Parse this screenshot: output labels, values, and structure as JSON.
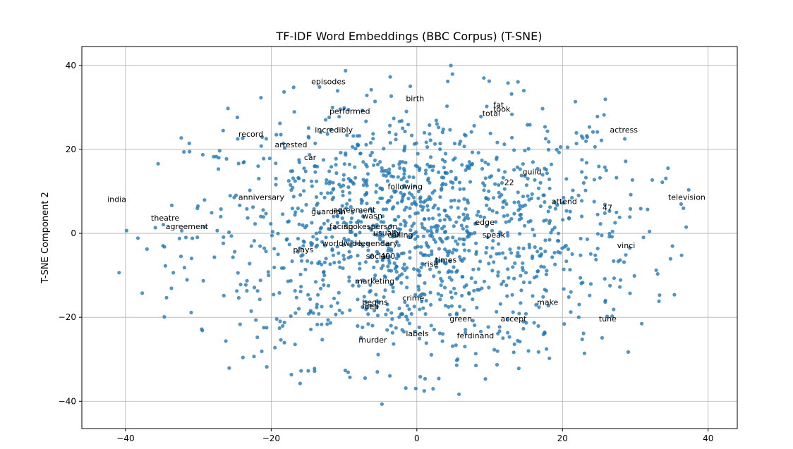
{
  "chart_data": {
    "type": "scatter",
    "title": "TF-IDF Word Embeddings (BBC Corpus) (T-SNE)",
    "xlabel": "",
    "ylabel": "T-SNE Component 2",
    "xlim": [
      -46,
      44
    ],
    "ylim": [
      -46.5,
      44.5
    ],
    "xticks": [
      -40,
      -20,
      0,
      20,
      40
    ],
    "yticks": [
      -40,
      -20,
      0,
      20,
      40
    ],
    "grid": true,
    "point_color": "#1f77b4",
    "approx_point_count": 1400,
    "annotations": [
      {
        "text": "episodes",
        "x": -14.5,
        "y": 35.5
      },
      {
        "text": "birth",
        "x": -1.5,
        "y": 31.5
      },
      {
        "text": "fat",
        "x": 10.5,
        "y": 30.0
      },
      {
        "text": "took",
        "x": 10.5,
        "y": 29.0
      },
      {
        "text": "total",
        "x": 9.0,
        "y": 28.0
      },
      {
        "text": "performed",
        "x": -12.0,
        "y": 28.5
      },
      {
        "text": "incredibly",
        "x": -14.0,
        "y": 24.0
      },
      {
        "text": "record",
        "x": -24.5,
        "y": 23.0
      },
      {
        "text": "actress",
        "x": 26.5,
        "y": 24.0
      },
      {
        "text": "arrested",
        "x": -19.5,
        "y": 20.5
      },
      {
        "text": "car",
        "x": -15.5,
        "y": 17.5
      },
      {
        "text": "guild",
        "x": 14.5,
        "y": 14.0
      },
      {
        "text": "22",
        "x": 12.0,
        "y": 11.5
      },
      {
        "text": "following",
        "x": -4.0,
        "y": 10.5
      },
      {
        "text": "india",
        "x": -42.5,
        "y": 7.5
      },
      {
        "text": "anniversary",
        "x": -24.5,
        "y": 8.0
      },
      {
        "text": "television",
        "x": 34.5,
        "y": 8.0
      },
      {
        "text": "attend",
        "x": 18.5,
        "y": 7.0
      },
      {
        "text": "47",
        "x": 25.5,
        "y": 5.5
      },
      {
        "text": "agreement",
        "x": -11.5,
        "y": 5.0
      },
      {
        "text": "guardian",
        "x": -14.5,
        "y": 4.5
      },
      {
        "text": "wasn",
        "x": -7.5,
        "y": 3.5
      },
      {
        "text": "theatre",
        "x": -36.5,
        "y": 3.0
      },
      {
        "text": "agreement",
        "x": -34.5,
        "y": 1.0
      },
      {
        "text": "edge",
        "x": 8.0,
        "y": 2.0
      },
      {
        "text": "facing",
        "x": -12.0,
        "y": 1.0
      },
      {
        "text": "spokesperson",
        "x": -10.0,
        "y": 1.0
      },
      {
        "text": "usually",
        "x": -6.0,
        "y": -0.5
      },
      {
        "text": "calling",
        "x": -4.0,
        "y": -1.0
      },
      {
        "text": "speak",
        "x": 9.0,
        "y": -1.0
      },
      {
        "text": "worldwide",
        "x": -13.0,
        "y": -3.0
      },
      {
        "text": "legendary",
        "x": -8.0,
        "y": -3.0
      },
      {
        "text": "vinci",
        "x": 27.5,
        "y": -3.5
      },
      {
        "text": "plays",
        "x": -17.0,
        "y": -4.5
      },
      {
        "text": "social",
        "x": -7.0,
        "y": -6.0
      },
      {
        "text": "400",
        "x": -5.0,
        "y": -6.0
      },
      {
        "text": "times",
        "x": 2.5,
        "y": -7.0
      },
      {
        "text": "rise",
        "x": 1.0,
        "y": -8.0
      },
      {
        "text": "marketing",
        "x": -8.5,
        "y": -12.0
      },
      {
        "text": "crime",
        "x": -2.0,
        "y": -16.0
      },
      {
        "text": "begins",
        "x": -7.5,
        "y": -17.0
      },
      {
        "text": "idea",
        "x": -7.5,
        "y": -18.0
      },
      {
        "text": "make",
        "x": 16.5,
        "y": -17.0
      },
      {
        "text": "green",
        "x": 4.5,
        "y": -21.0
      },
      {
        "text": "accept",
        "x": 11.5,
        "y": -21.0
      },
      {
        "text": "tune",
        "x": 25.0,
        "y": -21.0
      },
      {
        "text": "labels",
        "x": -1.5,
        "y": -24.5
      },
      {
        "text": "ferdinand",
        "x": 5.5,
        "y": -25.0
      },
      {
        "text": "murder",
        "x": -8.0,
        "y": -26.0
      }
    ]
  }
}
